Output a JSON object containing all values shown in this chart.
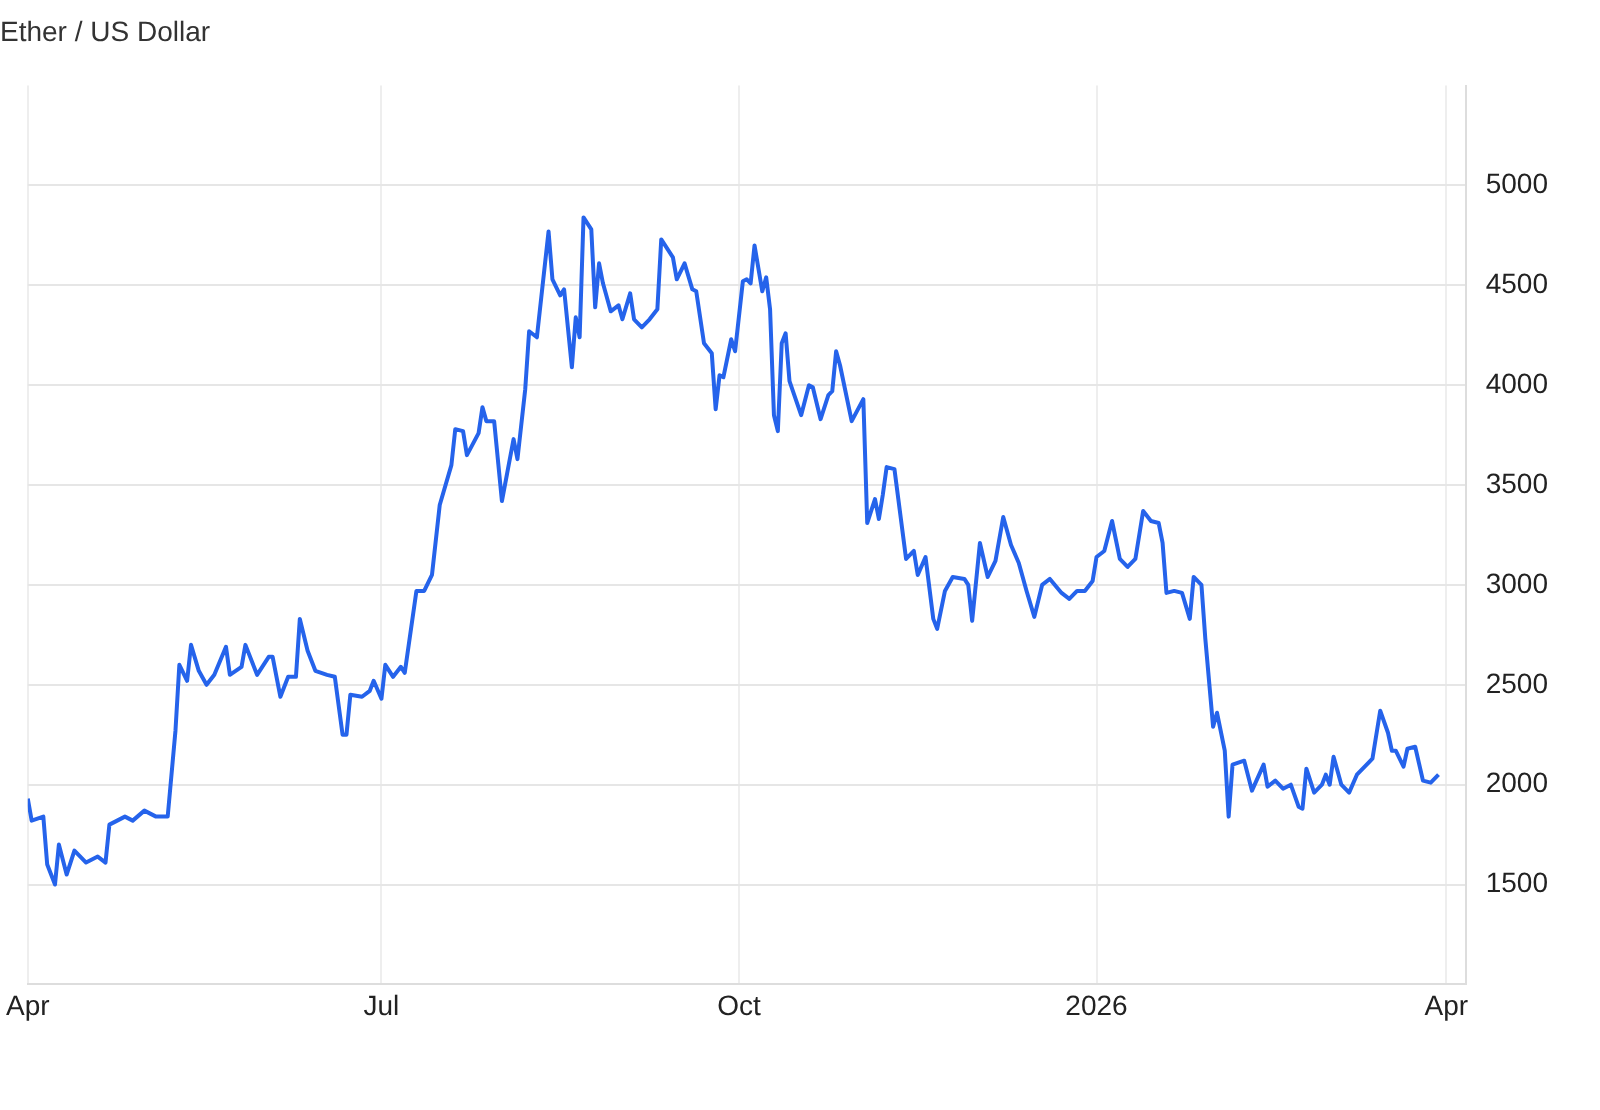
{
  "chart_data": {
    "type": "line",
    "title": "Ether / US Dollar",
    "x": [
      "2025-04-01",
      "2025-04-02",
      "2025-04-05",
      "2025-04-06",
      "2025-04-08",
      "2025-04-09",
      "2025-04-11",
      "2025-04-13",
      "2025-04-16",
      "2025-04-19",
      "2025-04-21",
      "2025-04-22",
      "2025-04-26",
      "2025-04-28",
      "2025-05-01",
      "2025-05-04",
      "2025-05-07",
      "2025-05-09",
      "2025-05-10",
      "2025-05-12",
      "2025-05-13",
      "2025-05-15",
      "2025-05-17",
      "2025-05-19",
      "2025-05-22",
      "2025-05-23",
      "2025-05-26",
      "2025-05-27",
      "2025-05-30",
      "2025-06-02",
      "2025-06-03",
      "2025-06-05",
      "2025-06-07",
      "2025-06-09",
      "2025-06-10",
      "2025-06-12",
      "2025-06-14",
      "2025-06-17",
      "2025-06-19",
      "2025-06-21",
      "2025-06-22",
      "2025-06-23",
      "2025-06-26",
      "2025-06-28",
      "2025-06-29",
      "2025-07-01",
      "2025-07-02",
      "2025-07-04",
      "2025-07-06",
      "2025-07-07",
      "2025-07-10",
      "2025-07-12",
      "2025-07-14",
      "2025-07-16",
      "2025-07-19",
      "2025-07-20",
      "2025-07-22",
      "2025-07-23",
      "2025-07-26",
      "2025-07-27",
      "2025-07-28",
      "2025-07-30",
      "2025-08-01",
      "2025-08-04",
      "2025-08-05",
      "2025-08-07",
      "2025-08-08",
      "2025-08-10",
      "2025-08-13",
      "2025-08-14",
      "2025-08-16",
      "2025-08-17",
      "2025-08-19",
      "2025-08-20",
      "2025-08-21",
      "2025-08-22",
      "2025-08-24",
      "2025-08-25",
      "2025-08-26",
      "2025-08-27",
      "2025-08-29",
      "2025-08-31",
      "2025-09-01",
      "2025-09-03",
      "2025-09-04",
      "2025-09-06",
      "2025-09-08",
      "2025-09-10",
      "2025-09-11",
      "2025-09-14",
      "2025-09-15",
      "2025-09-17",
      "2025-09-19",
      "2025-09-20",
      "2025-09-22",
      "2025-09-24",
      "2025-09-25",
      "2025-09-26",
      "2025-09-27",
      "2025-09-29",
      "2025-09-30",
      "2025-10-02",
      "2025-10-03",
      "2025-10-04",
      "2025-10-05",
      "2025-10-07",
      "2025-10-08",
      "2025-10-09",
      "2025-10-10",
      "2025-10-11",
      "2025-10-12",
      "2025-10-13",
      "2025-10-14",
      "2025-10-17",
      "2025-10-19",
      "2025-10-20",
      "2025-10-22",
      "2025-10-24",
      "2025-10-25",
      "2025-10-26",
      "2025-10-27",
      "2025-10-30",
      "2025-11-02",
      "2025-11-03",
      "2025-11-05",
      "2025-11-06",
      "2025-11-07",
      "2025-11-08",
      "2025-11-10",
      "2025-11-11",
      "2025-11-13",
      "2025-11-15",
      "2025-11-16",
      "2025-11-18",
      "2025-11-20",
      "2025-11-21",
      "2025-11-23",
      "2025-11-25",
      "2025-11-28",
      "2025-11-29",
      "2025-11-30",
      "2025-12-02",
      "2025-12-04",
      "2025-12-06",
      "2025-12-08",
      "2025-12-10",
      "2025-12-12",
      "2025-12-14",
      "2025-12-16",
      "2025-12-18",
      "2025-12-20",
      "2025-12-23",
      "2025-12-25",
      "2025-12-27",
      "2025-12-29",
      "2025-12-31",
      "2026-01-01",
      "2026-01-03",
      "2026-01-05",
      "2026-01-07",
      "2026-01-09",
      "2026-01-11",
      "2026-01-13",
      "2026-01-15",
      "2026-01-17",
      "2026-01-18",
      "2026-01-19",
      "2026-01-21",
      "2026-01-23",
      "2026-01-25",
      "2026-01-26",
      "2026-01-28",
      "2026-01-29",
      "2026-01-31",
      "2026-02-01",
      "2026-02-03",
      "2026-02-04",
      "2026-02-05",
      "2026-02-08",
      "2026-02-10",
      "2026-02-13",
      "2026-02-14",
      "2026-02-16",
      "2026-02-18",
      "2026-02-20",
      "2026-02-22",
      "2026-02-23",
      "2026-02-24",
      "2026-02-26",
      "2026-02-28",
      "2026-03-01",
      "2026-03-02",
      "2026-03-03",
      "2026-03-05",
      "2026-03-07",
      "2026-03-09",
      "2026-03-13",
      "2026-03-15",
      "2026-03-17",
      "2026-03-18",
      "2026-03-19",
      "2026-03-21",
      "2026-03-22",
      "2026-03-24",
      "2026-03-26",
      "2026-03-28",
      "2026-03-30"
    ],
    "series": [
      {
        "color": "#2563eb",
        "values": [
          1930,
          1820,
          1840,
          1600,
          1500,
          1700,
          1550,
          1670,
          1610,
          1640,
          1610,
          1800,
          1840,
          1820,
          1870,
          1840,
          1840,
          2270,
          2600,
          2520,
          2700,
          2570,
          2500,
          2550,
          2690,
          2550,
          2590,
          2700,
          2550,
          2640,
          2640,
          2440,
          2540,
          2540,
          2830,
          2670,
          2570,
          2550,
          2540,
          2250,
          2250,
          2450,
          2440,
          2470,
          2520,
          2430,
          2600,
          2540,
          2590,
          2560,
          2970,
          2970,
          3050,
          3400,
          3600,
          3780,
          3770,
          3650,
          3760,
          3890,
          3820,
          3820,
          3420,
          3730,
          3630,
          3980,
          4270,
          4240,
          4770,
          4530,
          4450,
          4480,
          4090,
          4340,
          4240,
          4840,
          4780,
          4390,
          4610,
          4510,
          4370,
          4400,
          4330,
          4460,
          4330,
          4290,
          4330,
          4380,
          4730,
          4640,
          4530,
          4610,
          4480,
          4470,
          4210,
          4160,
          3880,
          4050,
          4040,
          4230,
          4170,
          4520,
          4530,
          4510,
          4700,
          4470,
          4540,
          4380,
          3850,
          3770,
          4210,
          4260,
          4020,
          3850,
          4000,
          3990,
          3830,
          3950,
          3970,
          4170,
          4100,
          3820,
          3930,
          3310,
          3430,
          3330,
          3450,
          3590,
          3580,
          3430,
          3130,
          3170,
          3050,
          3140,
          2830,
          2780,
          2970,
          3040,
          3030,
          3000,
          2820,
          3210,
          3040,
          3120,
          3340,
          3200,
          3110,
          2970,
          2840,
          3000,
          3030,
          2960,
          2930,
          2970,
          2970,
          3020,
          3140,
          3170,
          3320,
          3130,
          3090,
          3130,
          3370,
          3320,
          3310,
          3210,
          2960,
          2970,
          2960,
          2830,
          3040,
          3000,
          2730,
          2290,
          2360,
          2170,
          1840,
          2100,
          2120,
          1970,
          2100,
          1990,
          2020,
          1980,
          2000,
          1890,
          1880,
          2080,
          1960,
          2000,
          2050,
          2000,
          2140,
          2000,
          1960,
          2050,
          2130,
          2370,
          2260,
          2170,
          2170,
          2090,
          2180,
          2190,
          2020,
          2010,
          2050
        ]
      }
    ],
    "xlim": [
      "2025-04-01",
      "2026-04-06"
    ],
    "xticks": [
      {
        "value": "2025-04-01",
        "label": "Apr"
      },
      {
        "value": "2025-07-01",
        "label": "Jul"
      },
      {
        "value": "2025-10-01",
        "label": "Oct"
      },
      {
        "value": "2026-01-01",
        "label": "2026"
      },
      {
        "value": "2026-04-01",
        "label": "Apr"
      }
    ],
    "ylim": [
      1000,
      5500
    ],
    "yticks": [
      1500,
      2000,
      2500,
      3000,
      3500,
      4000,
      4500,
      5000
    ],
    "grid": true,
    "legend": false,
    "line_style": "solid",
    "marker": "none"
  }
}
